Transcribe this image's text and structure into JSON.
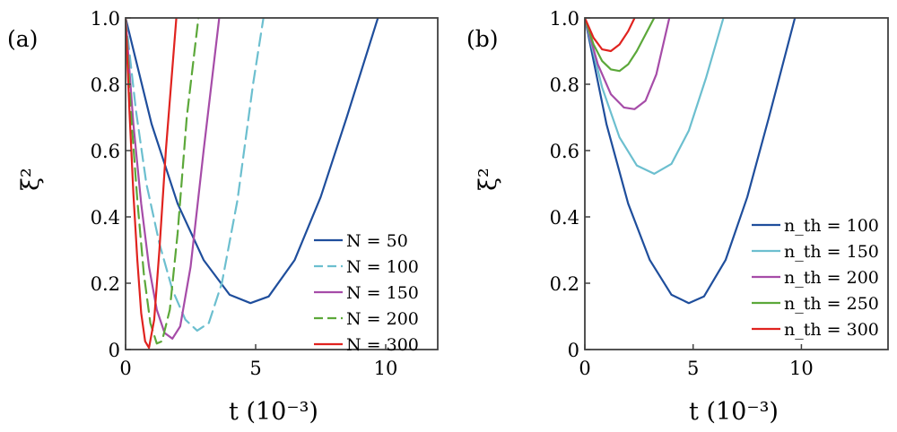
{
  "chart_data": [
    {
      "type": "line",
      "panel_label": "(a)",
      "xlabel": "t (10⁻³)",
      "ylabel": "ξ²",
      "xlim": [
        0,
        12
      ],
      "ylim": [
        0,
        1.0
      ],
      "xticks": [
        "0",
        "5",
        "10"
      ],
      "yticks": [
        "0",
        "0.2",
        "0.4",
        "0.6",
        "0.8",
        "1.0"
      ],
      "grid": false,
      "legend_position": "bottom-right",
      "series": [
        {
          "name": "N = 50",
          "color": "#1f4e9c",
          "dash": "solid",
          "x": [
            0,
            1,
            2,
            3,
            4,
            4.8,
            5.5,
            6.5,
            7.5,
            8.5,
            9.7
          ],
          "y": [
            1.0,
            0.68,
            0.44,
            0.27,
            0.165,
            0.14,
            0.16,
            0.27,
            0.46,
            0.7,
            1.0
          ]
        },
        {
          "name": "N = 100",
          "color": "#6cbfcf",
          "dash": "dashed",
          "x": [
            0,
            0.4,
            0.8,
            1.3,
            1.8,
            2.3,
            2.75,
            3.2,
            3.7,
            4.3,
            4.9,
            5.3
          ],
          "y": [
            1.0,
            0.72,
            0.5,
            0.32,
            0.18,
            0.09,
            0.057,
            0.08,
            0.2,
            0.45,
            0.8,
            1.0
          ]
        },
        {
          "name": "N = 150",
          "color": "#a64ca8",
          "dash": "solid",
          "x": [
            0,
            0.3,
            0.6,
            0.9,
            1.2,
            1.5,
            1.8,
            2.1,
            2.5,
            3.0,
            3.6
          ],
          "y": [
            1.0,
            0.68,
            0.44,
            0.25,
            0.12,
            0.05,
            0.033,
            0.07,
            0.25,
            0.6,
            1.0
          ]
        },
        {
          "name": "N = 200",
          "color": "#5ca83a",
          "dash": "dashed",
          "x": [
            0,
            0.2,
            0.45,
            0.7,
            0.95,
            1.2,
            1.4,
            1.7,
            2.0,
            2.35,
            2.8
          ],
          "y": [
            1.0,
            0.72,
            0.45,
            0.23,
            0.08,
            0.018,
            0.025,
            0.12,
            0.35,
            0.7,
            1.0
          ]
        },
        {
          "name": "N = 300",
          "color": "#e0231f",
          "dash": "solid",
          "x": [
            0,
            0.15,
            0.3,
            0.45,
            0.6,
            0.75,
            0.9,
            1.1,
            1.3,
            1.55,
            1.95
          ],
          "y": [
            1.0,
            0.72,
            0.47,
            0.27,
            0.11,
            0.025,
            0.005,
            0.09,
            0.3,
            0.6,
            1.0
          ]
        }
      ]
    },
    {
      "type": "line",
      "panel_label": "(b)",
      "xlabel": "t (10⁻³)",
      "ylabel": "ξ²",
      "xlim": [
        0,
        14
      ],
      "ylim": [
        0,
        1.0
      ],
      "xticks": [
        "0",
        "5",
        "10"
      ],
      "yticks": [
        "0",
        "0.2",
        "0.4",
        "0.6",
        "0.8",
        "1.0"
      ],
      "grid": false,
      "legend_position": "bottom-right",
      "series": [
        {
          "name": "n_th = 100",
          "color": "#1f4e9c",
          "dash": "solid",
          "x": [
            0,
            1,
            2,
            3,
            4,
            4.8,
            5.5,
            6.5,
            7.5,
            8.5,
            9.7
          ],
          "y": [
            1.0,
            0.68,
            0.44,
            0.27,
            0.165,
            0.14,
            0.16,
            0.27,
            0.46,
            0.7,
            1.0
          ]
        },
        {
          "name": "n_th = 150",
          "color": "#6cbfcf",
          "dash": "solid",
          "x": [
            0,
            0.8,
            1.6,
            2.4,
            3.2,
            4.0,
            4.8,
            5.6,
            6.4
          ],
          "y": [
            1.0,
            0.79,
            0.64,
            0.555,
            0.53,
            0.56,
            0.66,
            0.82,
            1.0
          ]
        },
        {
          "name": "n_th = 200",
          "color": "#a64ca8",
          "dash": "solid",
          "x": [
            0,
            0.6,
            1.2,
            1.8,
            2.3,
            2.8,
            3.3,
            3.9
          ],
          "y": [
            1.0,
            0.86,
            0.77,
            0.73,
            0.725,
            0.75,
            0.83,
            1.0
          ]
        },
        {
          "name": "n_th = 250",
          "color": "#5ca83a",
          "dash": "solid",
          "x": [
            0,
            0.4,
            0.8,
            1.2,
            1.6,
            2.0,
            2.4,
            3.2
          ],
          "y": [
            1.0,
            0.92,
            0.87,
            0.845,
            0.84,
            0.86,
            0.9,
            1.0
          ]
        },
        {
          "name": "n_th = 300",
          "color": "#e0231f",
          "dash": "solid",
          "x": [
            0,
            0.4,
            0.8,
            1.2,
            1.6,
            2.0,
            2.3
          ],
          "y": [
            1.0,
            0.94,
            0.905,
            0.9,
            0.92,
            0.96,
            1.0
          ]
        }
      ]
    }
  ]
}
